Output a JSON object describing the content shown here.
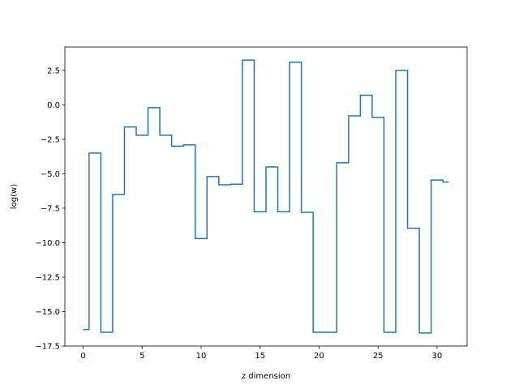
{
  "chart_data": {
    "type": "line",
    "drawstyle": "steps-mid",
    "title": "",
    "xlabel": "z dimension",
    "ylabel": "log(w)",
    "xlim": [
      -1.55,
      32.55
    ],
    "ylim": [
      -17.5,
      4.2
    ],
    "xticks": [
      0,
      5,
      10,
      15,
      20,
      25,
      30
    ],
    "xtick_labels": [
      "0",
      "5",
      "10",
      "15",
      "20",
      "25",
      "30"
    ],
    "yticks": [
      2.5,
      0.0,
      -2.5,
      -5.0,
      -7.5,
      -10.0,
      -12.5,
      -15.0,
      -17.5
    ],
    "ytick_labels": [
      "2.5",
      "0.0",
      "−2.5",
      "−5.0",
      "−7.5",
      "−10.0",
      "−12.5",
      "−15.0",
      "−17.5"
    ],
    "grid": false,
    "legend": "none",
    "series": [
      {
        "color": "#1f77b4",
        "x": [
          0,
          1,
          2,
          3,
          4,
          5,
          6,
          7,
          8,
          9,
          10,
          11,
          12,
          13,
          14,
          15,
          16,
          17,
          18,
          19,
          20,
          21,
          22,
          23,
          24,
          25,
          26,
          27,
          28,
          29,
          30,
          31
        ],
        "values": [
          -16.3,
          -3.5,
          -16.5,
          -6.5,
          -1.6,
          -2.2,
          -0.2,
          -2.2,
          -3.0,
          -2.9,
          -9.7,
          -5.2,
          -5.8,
          -5.75,
          3.25,
          -7.75,
          -4.5,
          -7.75,
          3.1,
          -7.8,
          -16.5,
          -16.5,
          -4.2,
          -0.8,
          0.7,
          -0.9,
          -16.5,
          2.5,
          -8.95,
          -16.55,
          -5.45,
          -5.6
        ]
      }
    ]
  }
}
